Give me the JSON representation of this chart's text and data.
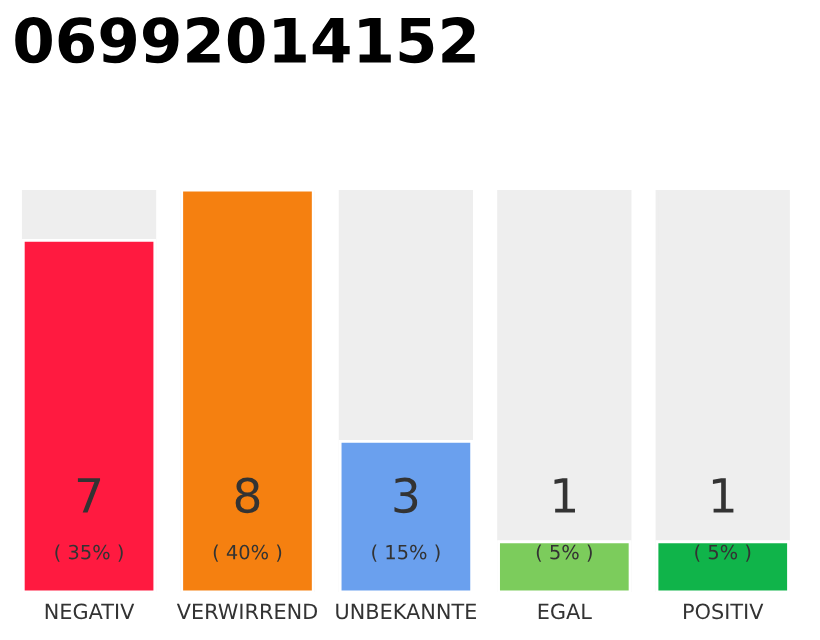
{
  "chart_data": {
    "type": "bar",
    "title": "06992014152",
    "categories": [
      "NEGATIV",
      "VERWIRREND",
      "UNBEKANNTE",
      "EGAL",
      "POSITIV"
    ],
    "values": [
      7,
      8,
      3,
      1,
      1
    ],
    "colors": [
      "#ff1a40",
      "#f58010",
      "#6aa0ee",
      "#7ccc5c",
      "#10b44a"
    ],
    "ylim": [
      0,
      8
    ],
    "tick_labels": "x",
    "data_labels": true,
    "grid": false,
    "annotations": [
      "( 35% )",
      "( 40% )",
      "( 15% )",
      "( 5% )",
      "( 5% )"
    ]
  }
}
